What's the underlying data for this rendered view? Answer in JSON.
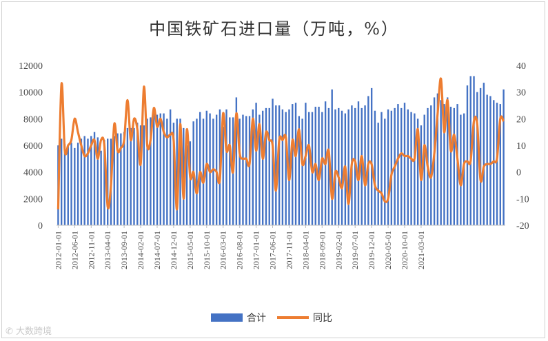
{
  "chart_data": {
    "type": "bar+line",
    "title": "中国铁矿石进口量（万吨，%）",
    "left_axis": {
      "min": 0,
      "max": 12000,
      "step": 2000,
      "ticks": [
        "0",
        "2000",
        "4000",
        "6000",
        "8000",
        "10000",
        "12000"
      ]
    },
    "right_axis": {
      "min": -20,
      "max": 40,
      "step": 10,
      "ticks": [
        "-20",
        "-10",
        "0",
        "10",
        "20",
        "30",
        "40"
      ]
    },
    "x_tick_labels": [
      "2012-01-01",
      "2012-06-01",
      "2012-11-01",
      "2013-04-01",
      "2013-09-01",
      "2014-02-01",
      "2014-07-01",
      "2014-12-01",
      "2015-05-01",
      "2015-10-01",
      "2016-03-01",
      "2016-08-01",
      "2017-01-01",
      "2017-06-01",
      "2017-11-01",
      "2018-04-01",
      "2018-09-01",
      "2019-02-01",
      "2019-07-01",
      "2019-12-01",
      "2020-05-01",
      "2020-10-01",
      "2021-03-01"
    ],
    "legend_position": "bottom",
    "series": [
      {
        "name": "合计",
        "type": "bar",
        "axis": "left",
        "color": "#4472c4",
        "values": [
          6000,
          6500,
          6100,
          6000,
          6200,
          5800,
          6200,
          6500,
          6700,
          6500,
          6700,
          7000,
          6600,
          5600,
          6400,
          6500,
          6500,
          6700,
          6900,
          6900,
          7000,
          7300,
          7300,
          7300,
          7700,
          7500,
          7500,
          8000,
          8100,
          8400,
          8300,
          8400,
          8400,
          8000,
          8700,
          7700,
          8000,
          8000,
          7300,
          6000,
          6300,
          7800,
          8000,
          8500,
          8000,
          8600,
          8400,
          8000,
          8300,
          8700,
          7400,
          8700,
          8100,
          8100,
          9600,
          8000,
          8300,
          8200,
          8200,
          8700,
          9200,
          8300,
          8600,
          8800,
          8800,
          9500,
          9000,
          9000,
          8700,
          8500,
          8700,
          9100,
          9200,
          8200,
          8000,
          9200,
          8500,
          8500,
          8900,
          8900,
          8500,
          9300,
          8800,
          10200,
          8700,
          8800,
          8600,
          8400,
          8700,
          9000,
          8800,
          9300,
          8800,
          9000,
          9700,
          10300,
          8600,
          7700,
          8500,
          8000,
          8700,
          8600,
          8800,
          9100,
          8800,
          9200,
          8700,
          8500,
          8400,
          8000,
          7500,
          8300,
          8800,
          9000,
          9600,
          9900,
          9400,
          9100,
          9600,
          8900,
          8800,
          9100,
          8300,
          8400,
          10500,
          11200,
          11200,
          10000,
          10300,
          10700,
          9800,
          9700,
          9400,
          9200,
          9100,
          10200
        ]
      },
      {
        "name": "同比",
        "type": "line",
        "axis": "right",
        "color": "#ed7d31",
        "values": [
          -14,
          33,
          8,
          10,
          12,
          20,
          15,
          10,
          6,
          7,
          10,
          12,
          5,
          12,
          10,
          -13,
          -5,
          18,
          8,
          9,
          12,
          27,
          12,
          20,
          16,
          3,
          32,
          10,
          12,
          24,
          17,
          20,
          15,
          13,
          14,
          12,
          -14,
          18,
          -10,
          16,
          -2,
          0,
          -8,
          0,
          -4,
          3,
          0,
          1,
          0,
          -3,
          22,
          8,
          10,
          0,
          22,
          7,
          5,
          5,
          3,
          20,
          8,
          18,
          5,
          15,
          12,
          10,
          -7,
          12,
          12,
          13,
          -3,
          12,
          6,
          16,
          3,
          6,
          10,
          0,
          3,
          -3,
          5,
          3,
          8,
          -10,
          0,
          -2,
          -6,
          2,
          -12,
          3,
          4,
          -3,
          6,
          -5,
          3,
          3,
          -5,
          -7,
          -8,
          -11,
          -10,
          -1,
          2,
          5,
          7,
          6,
          6,
          5,
          5,
          16,
          -3,
          10,
          2,
          -2,
          7,
          22,
          35,
          15,
          27,
          8,
          14,
          5,
          -5,
          3,
          4,
          4,
          19,
          18,
          -3,
          2,
          3,
          3,
          4,
          5,
          20,
          19
        ]
      }
    ]
  },
  "watermark": "大数跨境"
}
